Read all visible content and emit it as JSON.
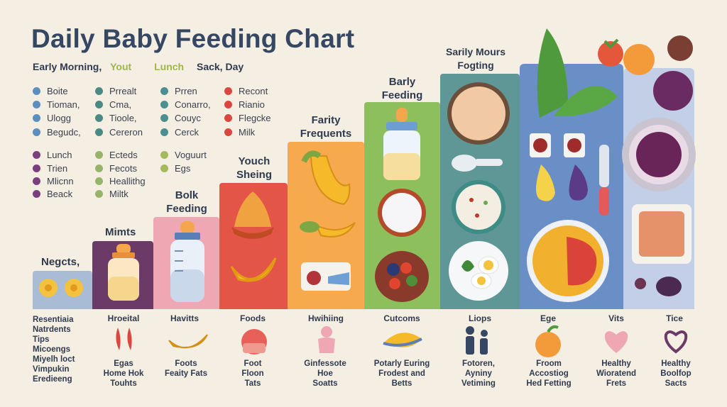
{
  "title": "Daily Baby Feeding Chart",
  "subtitle": {
    "part1": "Early Morning,",
    "part2": "Yout",
    "part3": "Lunch",
    "part4": "Sack, Day"
  },
  "colors": {
    "blue_dot": "#5b8fbf",
    "teal_dot": "#4a8a84",
    "gray_teal_dot": "#4b8f90",
    "red_dot": "#d9473e",
    "purple_dot": "#7a3f7e",
    "green_dot": "#96b56a",
    "olive_dot": "#a3bb5c",
    "bar_blue_gray": "#a9bcd6",
    "bar_purple": "#6c3a67",
    "bar_pink": "#f0a7b4",
    "bar_red": "#e25547",
    "bar_orange": "#f6a94d",
    "bar_green": "#8ebf5d",
    "bar_teal": "#5f9797",
    "bar_blue": "#6a8fc7",
    "bar_lavender": "#c3cfe6"
  },
  "legend": [
    [
      "Boite",
      "Tioman,",
      "Ulogg",
      "Begudc,"
    ],
    [
      "Prrealt",
      "Cma,",
      "Tioole,",
      "Cereron"
    ],
    [
      "Prren",
      "Conarro,",
      "Couyc",
      "Cerck"
    ],
    [
      "Recont",
      "Rianio",
      "Flegcke",
      "Milk"
    ],
    [
      "Lunch",
      "Trien",
      "Mlicnn",
      "Beack"
    ],
    [
      "Ecteds",
      "Fecots",
      "Heallithg",
      "Miltk"
    ],
    [
      "Voguurt",
      "Egs"
    ]
  ],
  "steps": [
    "Negcts,",
    "Mimts",
    [
      "Bolk",
      "Feeding"
    ],
    [
      "Youch",
      "Sheing"
    ],
    [
      "Farity",
      "Frequents"
    ],
    [
      "Barly",
      "Feeding"
    ],
    [
      "Sarily Mours",
      "Fogting"
    ]
  ],
  "bottom_left": [
    "Resentiaia",
    "Natrdents",
    "Tips",
    "Micoengs",
    "Miyelh loct",
    "Vimpukin",
    "Eredieeng"
  ],
  "bottom": [
    {
      "title": "Hroeital",
      "lines": [
        "Egas",
        "Home Hok",
        "Touhts"
      ]
    },
    {
      "title": "Havitts",
      "lines": [
        "Foots",
        "Feaity Fats"
      ]
    },
    {
      "title": "Foods",
      "lines": [
        "Foot",
        "Floon",
        "Tats"
      ]
    },
    {
      "title": "Hwihiing",
      "lines": [
        "Ginfessote",
        "Hoe",
        "Soatts"
      ]
    },
    {
      "title": "Cutcoms",
      "lines": [
        "Potarly Euring",
        "Frodest and",
        "Betts"
      ]
    },
    {
      "title": "Liops",
      "lines": [
        "Fotoren,",
        "Ayniny",
        "Vetiming"
      ]
    },
    {
      "title": "Ege",
      "lines": [
        "Froom",
        "Accostiog",
        "Hed Fetting"
      ]
    },
    {
      "title": "Vits",
      "lines": [
        "Healthy",
        "Wioratend",
        "Frets"
      ]
    },
    {
      "title": "Tice",
      "lines": [
        "Healthy",
        "Boolfop",
        "Sacts"
      ]
    }
  ]
}
